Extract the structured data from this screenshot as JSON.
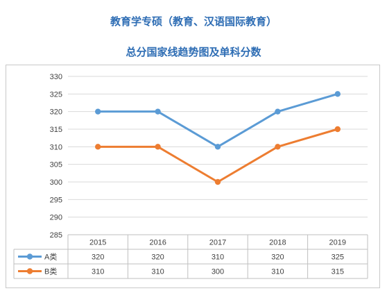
{
  "header": {
    "title": "教育学专硕（教育、汉语国际教育）",
    "subtitle": "总分国家线趋势图及单科分数"
  },
  "colors": {
    "title": "#2e6db4",
    "series_a": "#5b9bd5",
    "series_b": "#ed7d31",
    "grid": "#d9d9d9"
  },
  "chart_data": {
    "type": "line",
    "title": "总分国家线趋势图及单科分数",
    "categories": [
      "2015",
      "2016",
      "2017",
      "2018",
      "2019"
    ],
    "series": [
      {
        "name": "A类",
        "values": [
          320,
          320,
          310,
          320,
          325
        ],
        "color": "#5b9bd5"
      },
      {
        "name": "B类",
        "values": [
          310,
          310,
          300,
          310,
          315
        ],
        "color": "#ed7d31"
      }
    ],
    "ylim": [
      285,
      330
    ],
    "ystep": 5,
    "yticks": [
      "285",
      "290",
      "295",
      "300",
      "305",
      "310",
      "315",
      "320",
      "325",
      "330"
    ],
    "grid": true,
    "legend": "data-table-below",
    "xlabel": "",
    "ylabel": ""
  }
}
